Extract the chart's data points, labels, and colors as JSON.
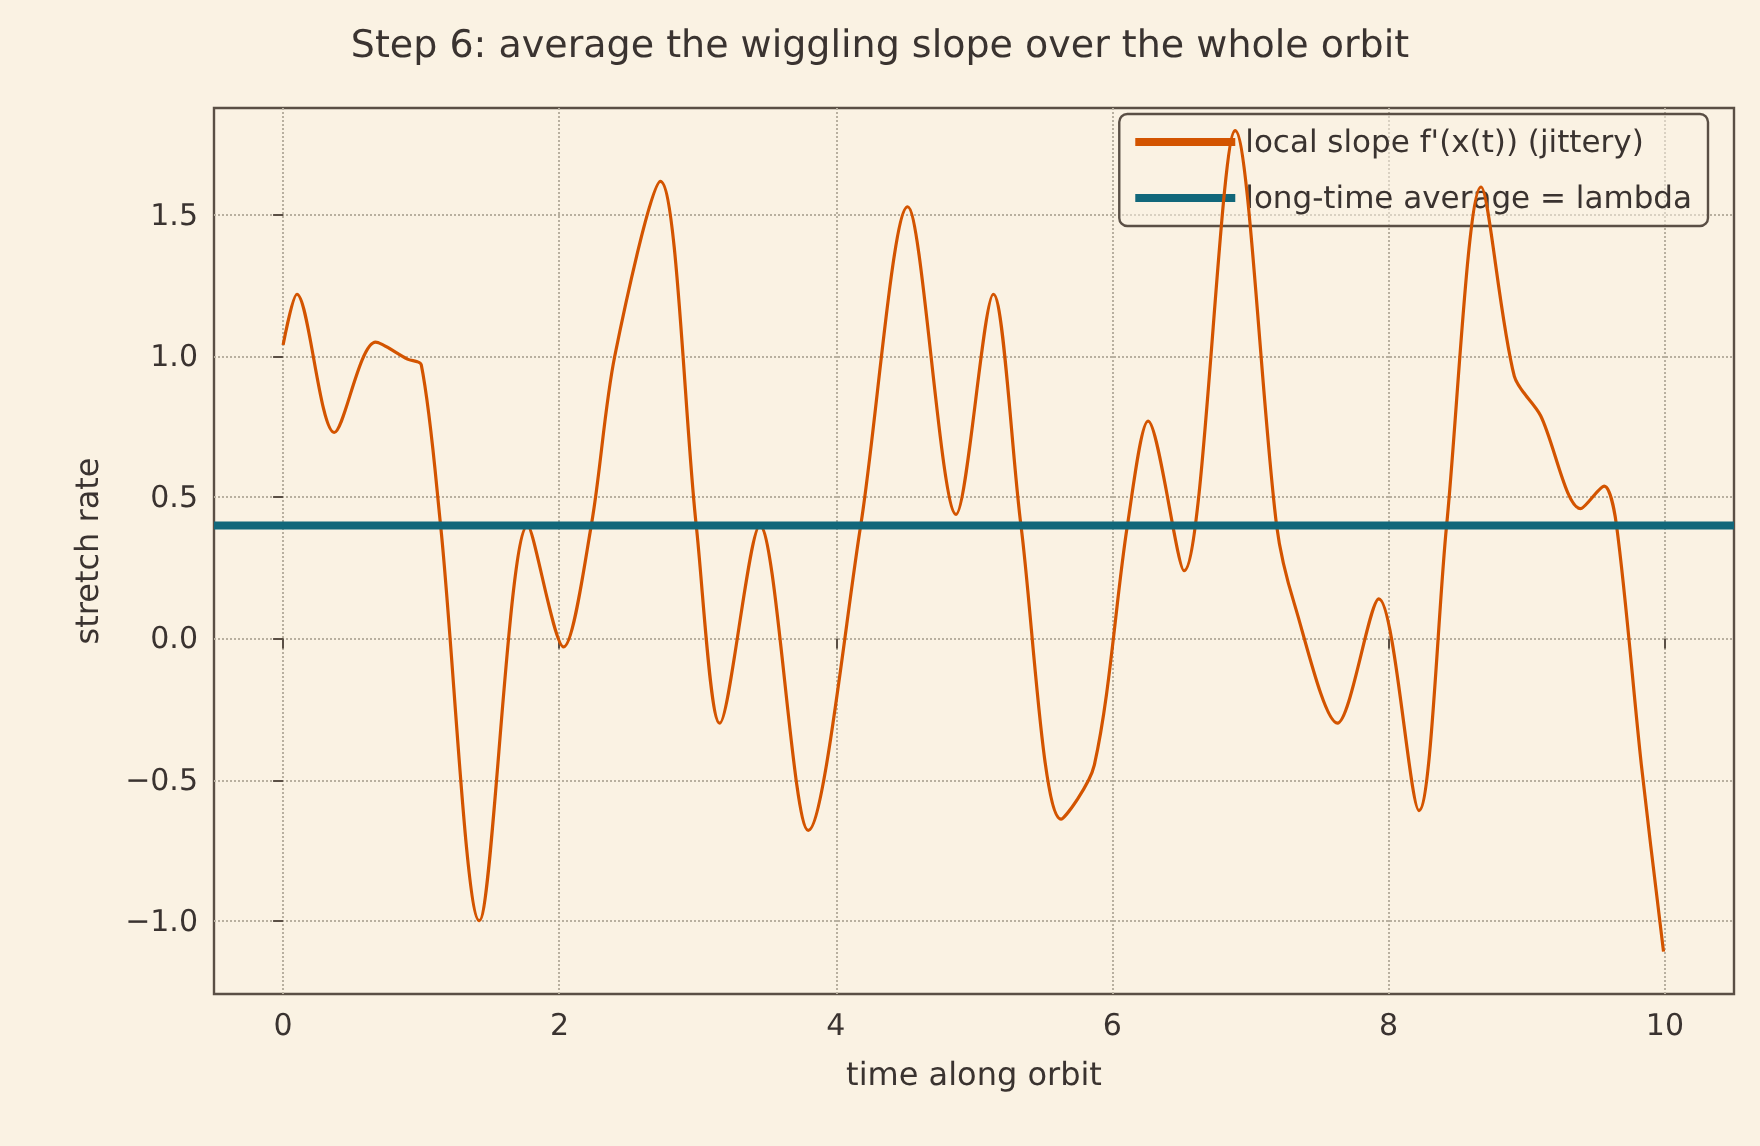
{
  "chart_data": {
    "type": "line",
    "title": "Step 6: average the wiggling slope over the whole orbit",
    "xlabel": "time along orbit",
    "ylabel": "stretch rate",
    "xlim": [
      -0.5,
      10.5
    ],
    "xticks": [
      0,
      2,
      4,
      6,
      8,
      10
    ],
    "ylim": [
      -1.26,
      1.88
    ],
    "yticks": [
      {
        "value": -1,
        "label": "−1.0"
      },
      {
        "value": -0.5,
        "label": "−0.5"
      },
      {
        "value": 0,
        "label": "0.0"
      },
      {
        "value": 0.5,
        "label": "0.5"
      },
      {
        "value": 1,
        "label": "1.0"
      },
      {
        "value": 1.5,
        "label": "1.5"
      }
    ],
    "grid": true,
    "legend": "top right",
    "marker": "none",
    "series": [
      {
        "name": "local slope f'(x(t)) (jittery)",
        "color": "#d35400",
        "x": [
          0,
          0.1,
          0.37,
          0.67,
          0.9,
          1.0,
          1.14,
          1.42,
          1.77,
          2.03,
          2.23,
          2.4,
          2.73,
          2.99,
          3.16,
          3.45,
          3.8,
          4.18,
          4.52,
          4.87,
          5.14,
          5.34,
          5.63,
          5.87,
          6.11,
          6.26,
          6.52,
          6.89,
          7.19,
          7.32,
          7.63,
          7.93,
          8.22,
          8.42,
          8.67,
          8.91,
          9.1,
          9.39,
          9.56,
          9.65,
          9.83,
          9.99
        ],
        "values": [
          1.04,
          1.22,
          0.73,
          1.05,
          0.99,
          0.97,
          0.4,
          -1.0,
          0.4,
          -0.03,
          0.4,
          1.0,
          1.62,
          0.4,
          -0.3,
          0.4,
          -0.68,
          0.4,
          1.53,
          0.44,
          1.22,
          0.4,
          -0.64,
          -0.45,
          0.4,
          0.77,
          0.24,
          1.8,
          0.4,
          0.12,
          -0.3,
          0.14,
          -0.61,
          0.4,
          1.6,
          0.93,
          0.79,
          0.46,
          0.54,
          0.4,
          -0.45,
          -1.11
        ]
      },
      {
        "name": "long-time average = lambda",
        "color": "#11677a",
        "x": [
          -0.5,
          10.5
        ],
        "values": [
          0.4,
          0.4
        ]
      }
    ]
  }
}
